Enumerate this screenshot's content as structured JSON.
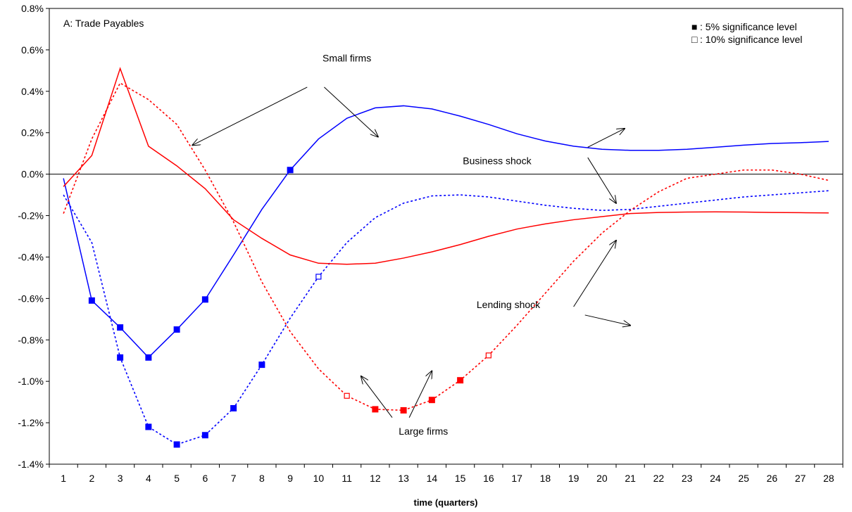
{
  "chart_data": {
    "type": "line",
    "title": "A: Trade Payables",
    "xlabel": "time (quarters)",
    "ylabel": "",
    "x": [
      1,
      2,
      3,
      4,
      5,
      6,
      7,
      8,
      9,
      10,
      11,
      12,
      13,
      14,
      15,
      16,
      17,
      18,
      19,
      20,
      21,
      22,
      23,
      24,
      25,
      26,
      27,
      28
    ],
    "xlim": [
      0.5,
      28.5
    ],
    "ylim": [
      -1.4,
      0.8
    ],
    "y_ticks": [
      -1.4,
      -1.2,
      -1.0,
      -0.8,
      -0.6,
      -0.4,
      -0.2,
      0.0,
      0.2,
      0.4,
      0.6,
      0.8
    ],
    "y_tick_labels": [
      "-1.4%",
      "-1.2%",
      "-1.0%",
      "-0.8%",
      "-0.6%",
      "-0.4%",
      "-0.2%",
      "0.0%",
      "0.2%",
      "0.4%",
      "0.6%",
      "0.8%"
    ],
    "x_tick_labels": [
      "1",
      "2",
      "3",
      "4",
      "5",
      "6",
      "7",
      "8",
      "9",
      "10",
      "11",
      "12",
      "13",
      "14",
      "15",
      "16",
      "17",
      "18",
      "19",
      "20",
      "21",
      "22",
      "23",
      "24",
      "25",
      "26",
      "27",
      "28"
    ],
    "grid": false,
    "legend_position": "top-right",
    "legend": [
      {
        "symbol": "■",
        "label": ":   5% significance level"
      },
      {
        "symbol": "□",
        "label": ": 10% significance level"
      }
    ],
    "series": [
      {
        "color": "#0000ff",
        "dash": "solid",
        "values": [
          -0.02,
          -0.61,
          -0.74,
          -0.885,
          -0.75,
          -0.605,
          -0.39,
          -0.17,
          0.02,
          0.17,
          0.27,
          0.32,
          0.33,
          0.315,
          0.28,
          0.24,
          0.195,
          0.16,
          0.135,
          0.12,
          0.115,
          0.115,
          0.12,
          0.13,
          0.14,
          0.148,
          0.152,
          0.158
        ],
        "sig5": [
          2,
          3,
          4,
          5,
          6,
          9
        ],
        "sig10": []
      },
      {
        "color": "#0000ff",
        "dash": "dotted",
        "values": [
          -0.1,
          -0.33,
          -0.885,
          -1.22,
          -1.305,
          -1.26,
          -1.13,
          -0.92,
          -0.695,
          -0.495,
          -0.33,
          -0.21,
          -0.14,
          -0.105,
          -0.1,
          -0.11,
          -0.13,
          -0.15,
          -0.165,
          -0.175,
          -0.17,
          -0.155,
          -0.14,
          -0.125,
          -0.11,
          -0.1,
          -0.09,
          -0.08
        ],
        "sig5": [
          3,
          4,
          5,
          6,
          7,
          8
        ],
        "sig10": [
          10
        ]
      },
      {
        "color": "#ff0000",
        "dash": "solid",
        "values": [
          -0.06,
          0.09,
          0.51,
          0.135,
          0.04,
          -0.07,
          -0.22,
          -0.31,
          -0.39,
          -0.43,
          -0.435,
          -0.43,
          -0.405,
          -0.375,
          -0.34,
          -0.3,
          -0.265,
          -0.24,
          -0.22,
          -0.205,
          -0.19,
          -0.185,
          -0.183,
          -0.182,
          -0.183,
          -0.185,
          -0.186,
          -0.187
        ],
        "sig5": [],
        "sig10": []
      },
      {
        "color": "#ff0000",
        "dash": "dotted",
        "values": [
          -0.19,
          0.17,
          0.44,
          0.36,
          0.24,
          0.02,
          -0.23,
          -0.52,
          -0.76,
          -0.94,
          -1.07,
          -1.135,
          -1.14,
          -1.09,
          -0.995,
          -0.875,
          -0.73,
          -0.575,
          -0.42,
          -0.285,
          -0.175,
          -0.085,
          -0.02,
          0.0,
          0.02,
          0.02,
          0.0,
          -0.03
        ],
        "sig5": [
          12,
          13,
          14,
          15
        ],
        "sig10": [
          11,
          16
        ]
      }
    ],
    "annotations": [
      {
        "text": "Small firms",
        "x": 11.0,
        "y": 0.56,
        "arrows": [
          [
            9.6,
            0.42,
            5.55,
            0.14
          ],
          [
            10.2,
            0.42,
            12.1,
            0.18
          ]
        ]
      },
      {
        "text": "Business shock",
        "x": 16.3,
        "y": 0.065,
        "arrows": [
          [
            19.5,
            0.13,
            20.8,
            0.22
          ],
          [
            19.5,
            0.08,
            20.5,
            -0.14
          ]
        ]
      },
      {
        "text": "Lending shock",
        "x": 16.7,
        "y": -0.63,
        "arrows": [
          [
            19.0,
            -0.64,
            20.5,
            -0.32
          ],
          [
            19.4,
            -0.68,
            21.0,
            -0.73
          ]
        ]
      },
      {
        "text": "Large firms",
        "x": 13.7,
        "y": -1.24,
        "arrows": [
          [
            12.6,
            -1.175,
            11.5,
            -0.975
          ],
          [
            13.2,
            -1.175,
            14.0,
            -0.95
          ]
        ]
      }
    ]
  }
}
